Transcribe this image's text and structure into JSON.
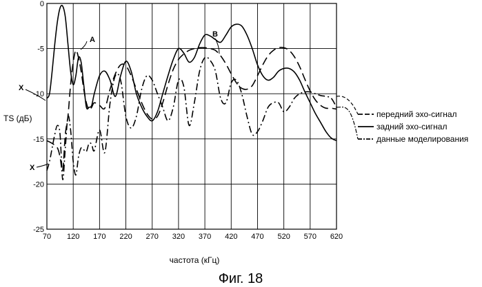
{
  "caption": "Фиг. 18",
  "chart_data": {
    "type": "line",
    "title": "",
    "xlabel": "частота (кГц)",
    "ylabel": "TS (дБ)",
    "xlim": [
      70,
      620
    ],
    "ylim": [
      -25,
      0
    ],
    "xticks": [
      70,
      120,
      170,
      220,
      270,
      320,
      370,
      420,
      470,
      520,
      570,
      620
    ],
    "yticks": [
      0,
      -5,
      -10,
      -15,
      -20,
      -25
    ],
    "grid": true,
    "legend_position": "right",
    "series": [
      {
        "name": "передний эхо-сигнал",
        "dash": "12,6",
        "color": "#000000",
        "x": [
          70,
          80,
          90,
          95,
          100,
          105,
          110,
          115,
          120,
          125,
          130,
          135,
          140,
          145,
          150,
          155,
          160,
          170,
          180,
          190,
          200,
          210,
          220,
          230,
          240,
          250,
          260,
          270,
          280,
          290,
          300,
          310,
          320,
          330,
          340,
          350,
          360,
          370,
          380,
          390,
          400,
          410,
          420,
          430,
          440,
          450,
          460,
          470,
          480,
          490,
          500,
          510,
          520,
          530,
          540,
          550,
          560,
          570,
          580,
          590,
          600,
          610,
          620
        ],
        "y": [
          -15.2,
          -15.5,
          -16.0,
          -17.0,
          -18.5,
          -14.5,
          -12.5,
          -9.0,
          -6.5,
          -5.2,
          -6.0,
          -7.5,
          -9.5,
          -11.0,
          -11.8,
          -11.5,
          -11.0,
          -11.3,
          -11.6,
          -9.5,
          -7.8,
          -6.8,
          -6.9,
          -8.0,
          -9.5,
          -11.0,
          -12.2,
          -12.8,
          -12.5,
          -11.0,
          -9.0,
          -7.3,
          -6.2,
          -5.6,
          -5.2,
          -5.0,
          -4.9,
          -4.9,
          -5.0,
          -5.2,
          -5.8,
          -6.7,
          -7.8,
          -8.8,
          -9.4,
          -9.5,
          -9.1,
          -8.0,
          -6.8,
          -5.8,
          -5.2,
          -4.9,
          -4.9,
          -5.2,
          -5.9,
          -7.0,
          -8.4,
          -9.7,
          -10.7,
          -11.3,
          -11.6,
          -11.6,
          -11.7
        ]
      },
      {
        "name": "задний эхо-сигнал",
        "dash": "",
        "color": "#000000",
        "x": [
          70,
          75,
          80,
          85,
          90,
          95,
          100,
          105,
          110,
          115,
          120,
          125,
          130,
          135,
          140,
          145,
          150,
          155,
          160,
          170,
          180,
          190,
          200,
          210,
          220,
          230,
          240,
          250,
          260,
          270,
          280,
          290,
          300,
          310,
          320,
          330,
          340,
          350,
          360,
          370,
          380,
          390,
          400,
          410,
          420,
          430,
          440,
          450,
          460,
          470,
          480,
          490,
          500,
          510,
          520,
          530,
          540,
          550,
          560,
          570,
          580,
          590,
          600,
          610,
          620
        ],
        "y": [
          -10.5,
          -10.0,
          -7.5,
          -4.5,
          -2.0,
          -0.5,
          -0.3,
          -1.5,
          -4.5,
          -7.5,
          -9.0,
          -8.0,
          -6.0,
          -6.5,
          -9.0,
          -11.5,
          -11.5,
          -11.3,
          -10.0,
          -8.0,
          -7.5,
          -8.5,
          -10.3,
          -8.0,
          -6.4,
          -7.5,
          -10.0,
          -11.5,
          -12.5,
          -13.0,
          -12.0,
          -10.0,
          -8.0,
          -6.2,
          -5.0,
          -5.5,
          -6.5,
          -6.0,
          -4.5,
          -3.5,
          -3.6,
          -4.0,
          -4.3,
          -3.5,
          -2.6,
          -2.3,
          -2.5,
          -3.5,
          -5.0,
          -6.8,
          -8.0,
          -8.5,
          -8.2,
          -7.5,
          -7.2,
          -7.2,
          -7.6,
          -8.5,
          -9.8,
          -11.0,
          -12.2,
          -13.2,
          -14.2,
          -14.9,
          -15.2
        ]
      },
      {
        "name": "данные моделирования",
        "dash": "10,4,2,4",
        "color": "#000000",
        "x": [
          70,
          75,
          80,
          85,
          90,
          95,
          100,
          105,
          110,
          115,
          120,
          125,
          130,
          135,
          140,
          145,
          150,
          155,
          160,
          170,
          180,
          190,
          200,
          210,
          220,
          230,
          240,
          250,
          260,
          270,
          280,
          290,
          300,
          310,
          320,
          330,
          340,
          350,
          360,
          370,
          380,
          390,
          400,
          410,
          420,
          430,
          440,
          450,
          460,
          470,
          480,
          490,
          500,
          510,
          520,
          530,
          540,
          550,
          560,
          570,
          580,
          590,
          600,
          610,
          620
        ],
        "y": [
          -18.5,
          -17.5,
          -16.0,
          -14.5,
          -13.5,
          -14.5,
          -19.5,
          -16.0,
          -12.5,
          -14.0,
          -17.5,
          -19.0,
          -17.0,
          -16.0,
          -16.2,
          -16.4,
          -15.5,
          -15.6,
          -16.3,
          -14.0,
          -16.5,
          -11.0,
          -8.0,
          -8.5,
          -12.5,
          -13.8,
          -12.5,
          -9.5,
          -8.0,
          -8.5,
          -10.0,
          -11.5,
          -13.0,
          -11.5,
          -8.5,
          -9.2,
          -13.5,
          -11.0,
          -7.5,
          -6.0,
          -6.3,
          -7.5,
          -10.5,
          -11.0,
          -8.8,
          -8.5,
          -10.0,
          -12.5,
          -14.5,
          -14.2,
          -13.0,
          -11.5,
          -11.0,
          -11.0,
          -12.0,
          -11.5,
          -10.5,
          -10.0,
          -9.8,
          -9.8,
          -10.0,
          -10.2,
          -10.3,
          -10.5,
          -11.5
        ]
      }
    ],
    "annotations": [
      {
        "text": "A",
        "x": 140,
        "y": -4.0
      },
      {
        "text": "B",
        "x": 380,
        "y": -3.8
      },
      {
        "text": "X",
        "x": 40,
        "y": -9.2
      },
      {
        "text": "X",
        "x": 40,
        "y": -19.3
      }
    ]
  }
}
